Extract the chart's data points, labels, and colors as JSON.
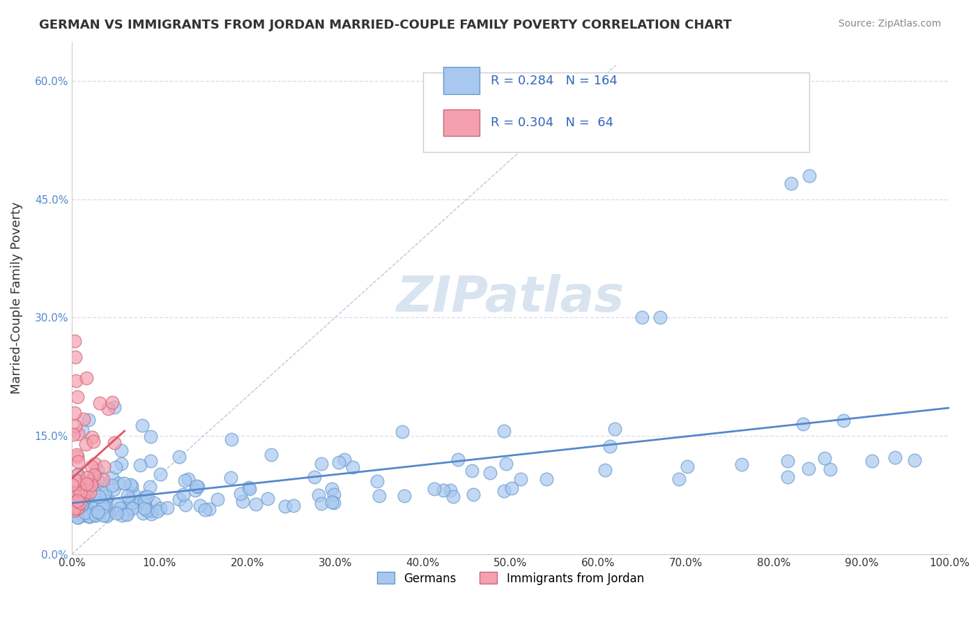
{
  "title": "GERMAN VS IMMIGRANTS FROM JORDAN MARRIED-COUPLE FAMILY POVERTY CORRELATION CHART",
  "source": "Source: ZipAtlas.com",
  "xlabel": "",
  "ylabel": "Married-Couple Family Poverty",
  "xlim": [
    0.0,
    100.0
  ],
  "ylim": [
    0.0,
    65.0
  ],
  "ytick_vals": [
    0.0,
    15.0,
    30.0,
    45.0,
    60.0
  ],
  "ytick_labels": [
    "0.0%",
    "15.0%",
    "30.0%",
    "45.0%",
    "60.0%"
  ],
  "xtick_labels": [
    "0.0%",
    "10.0%",
    "20.0%",
    "30.0%",
    "40.0%",
    "50.0%",
    "60.0%",
    "70.0%",
    "80.0%",
    "90.0%",
    "100.0%"
  ],
  "german_color": "#a8c8f0",
  "jordan_color": "#f5a0b0",
  "german_edge_color": "#6699cc",
  "jordan_edge_color": "#cc6677",
  "blue_line_color": "#5588cc",
  "pink_line_color": "#dd5566",
  "diag_line_color": "#aabbcc",
  "grid_color": "#ddddee",
  "watermark_color": "#d8e4f0",
  "R_german": 0.284,
  "N_german": 164,
  "R_jordan": 0.304,
  "N_jordan": 64,
  "marker_size": 180
}
